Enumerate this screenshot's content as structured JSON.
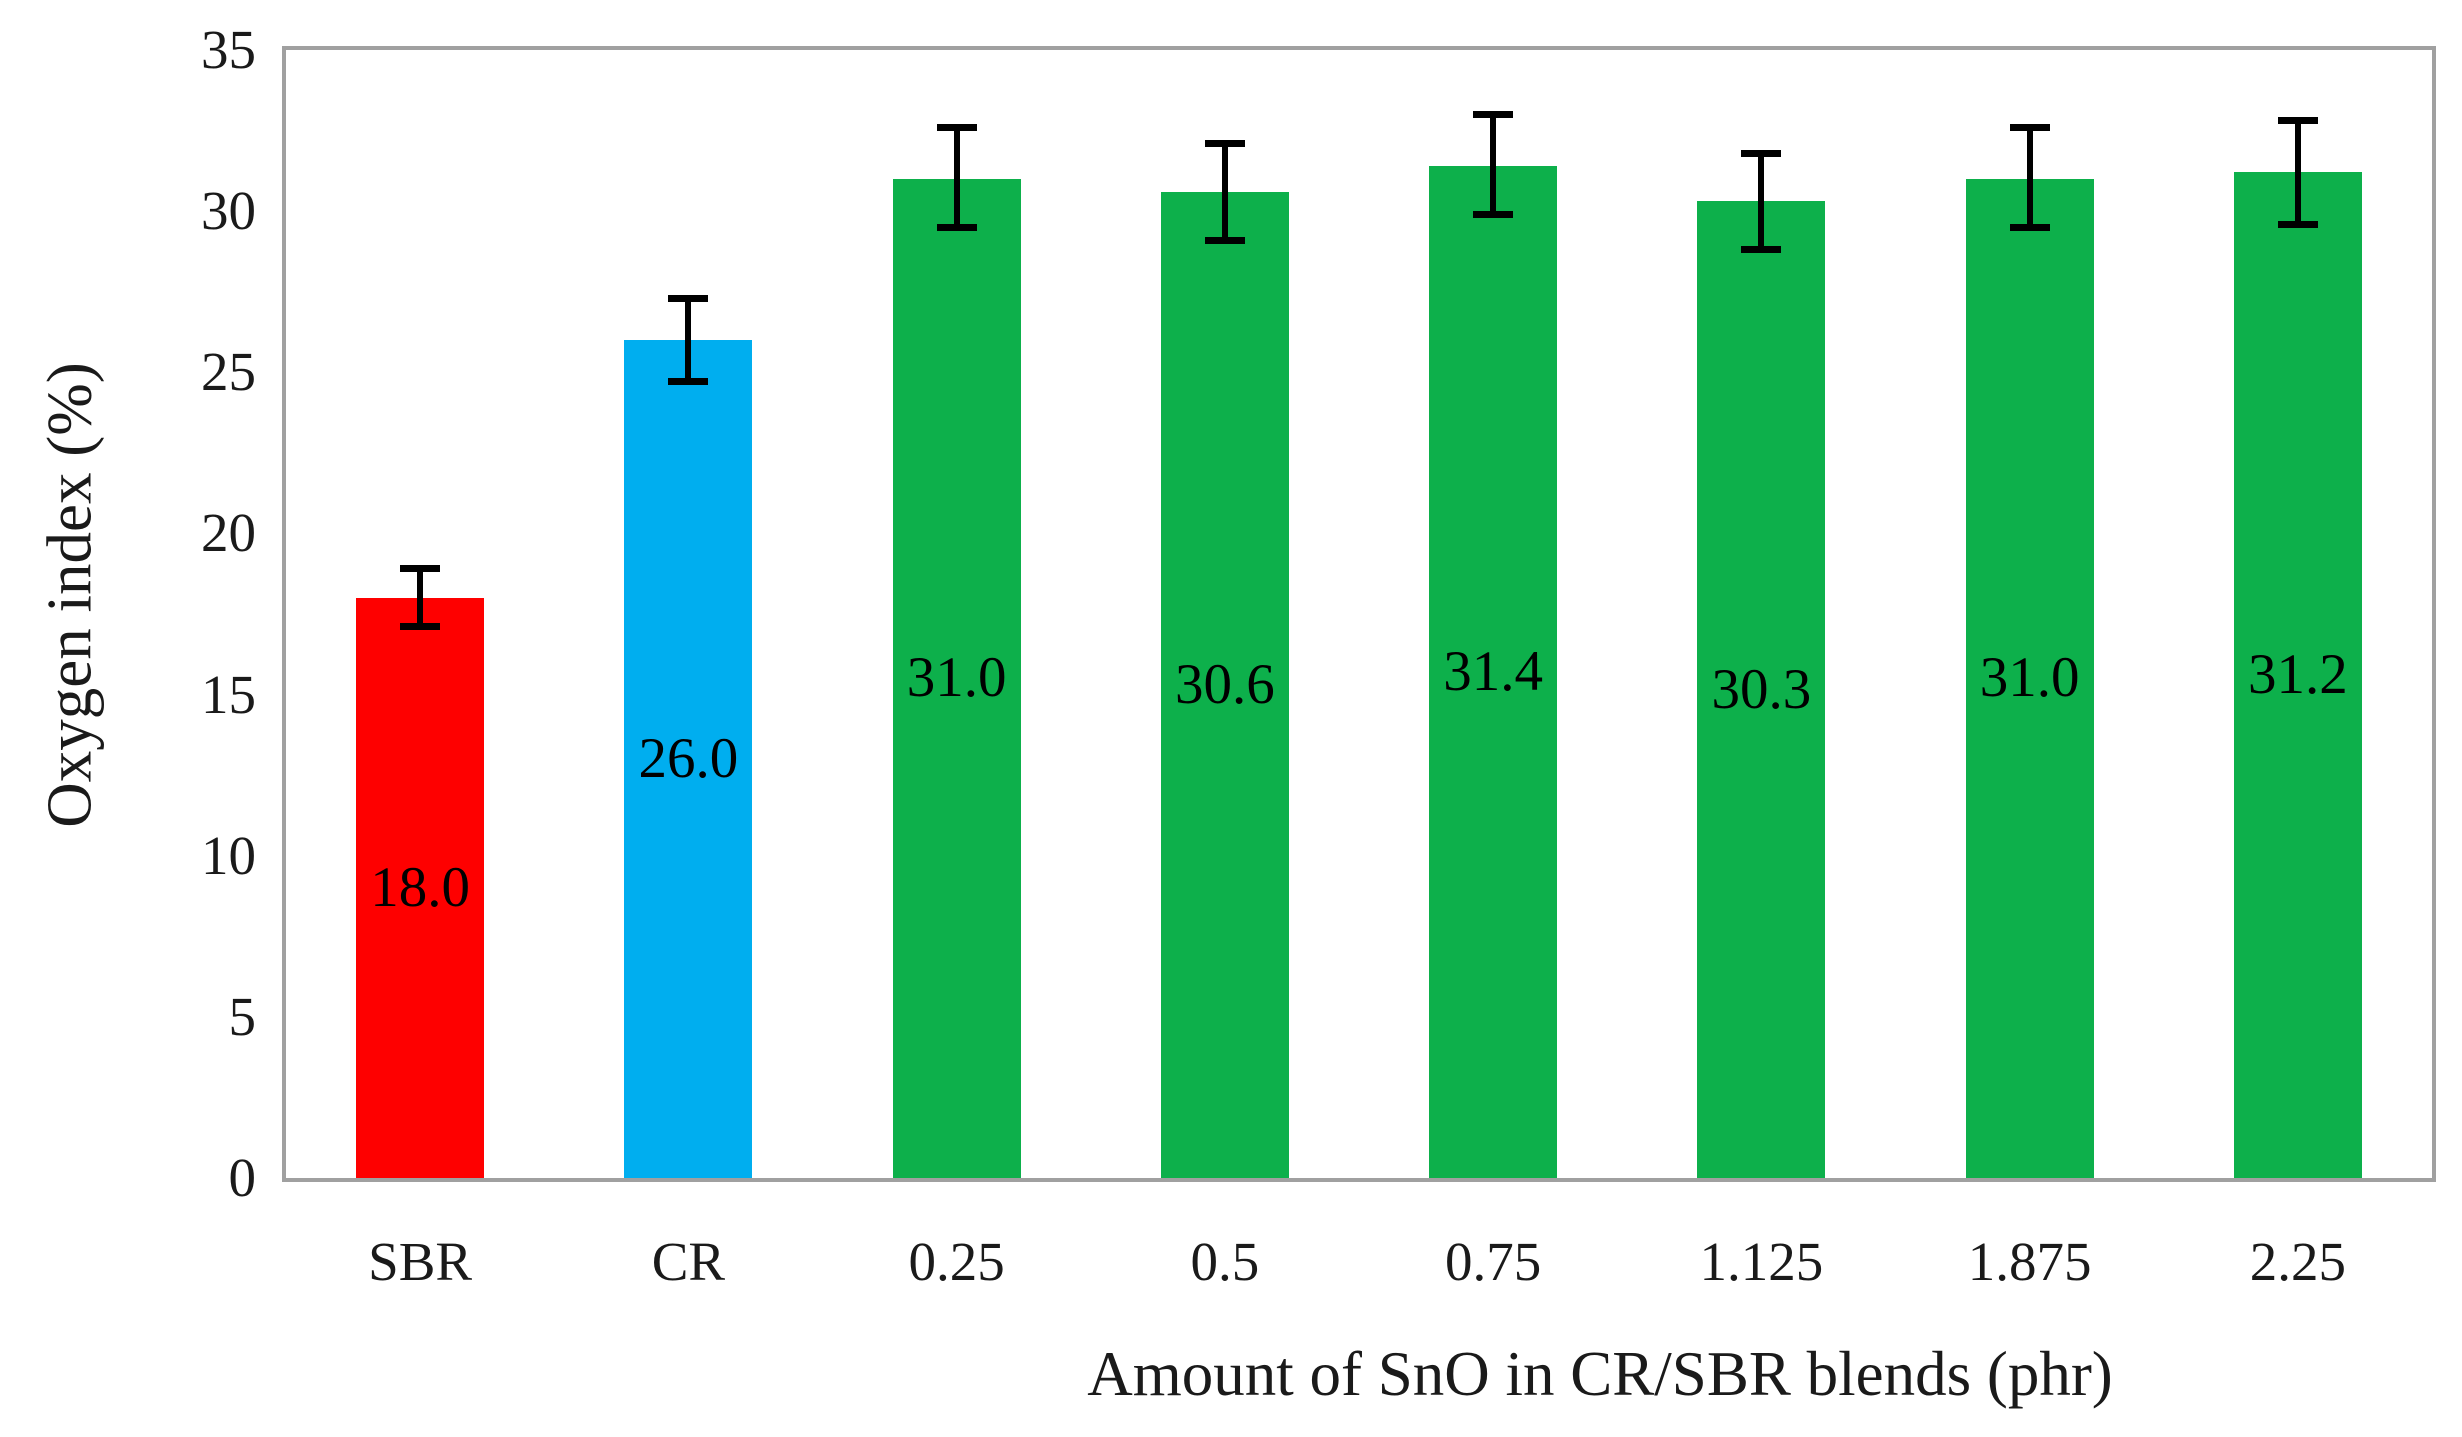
{
  "chart_data": {
    "type": "bar",
    "title": "",
    "xlabel": "Amount of SnO in CR/SBR blends (phr)",
    "ylabel": "Oxygen index (%)",
    "ylim": [
      0,
      35
    ],
    "yticks": [
      0,
      5,
      10,
      15,
      20,
      25,
      30,
      35
    ],
    "grid": false,
    "legend": "none",
    "categories": [
      "SBR",
      "CR",
      "0.25",
      "0.5",
      "0.75",
      "1.125",
      "1.875",
      "2.25"
    ],
    "values": [
      18.0,
      26.0,
      31.0,
      30.6,
      31.4,
      30.3,
      31.0,
      31.2
    ],
    "bar_labels": [
      "18.0",
      "26.0",
      "31.0",
      "30.6",
      "31.4",
      "30.3",
      "31.0",
      "31.2"
    ],
    "errors_plus": [
      0.9,
      1.3,
      1.6,
      1.5,
      1.6,
      1.5,
      1.6,
      1.6
    ],
    "errors_minus": [
      0.9,
      1.3,
      1.5,
      1.5,
      1.5,
      1.5,
      1.5,
      1.6
    ],
    "bar_colors": [
      "#fe0000",
      "#00aeef",
      "#0db04b",
      "#0db04b",
      "#0db04b",
      "#0db04b",
      "#0db04b",
      "#0db04b"
    ],
    "colors": {
      "sbr_red": "#fe0000",
      "cr_blue": "#00aeef",
      "sno_green": "#0db04b",
      "plot_border": "#a0a0a0",
      "error_bar": "#000000",
      "bar_label_text": "#000000",
      "axis_text": "#1a1a1a",
      "background": "#ffffff"
    }
  }
}
